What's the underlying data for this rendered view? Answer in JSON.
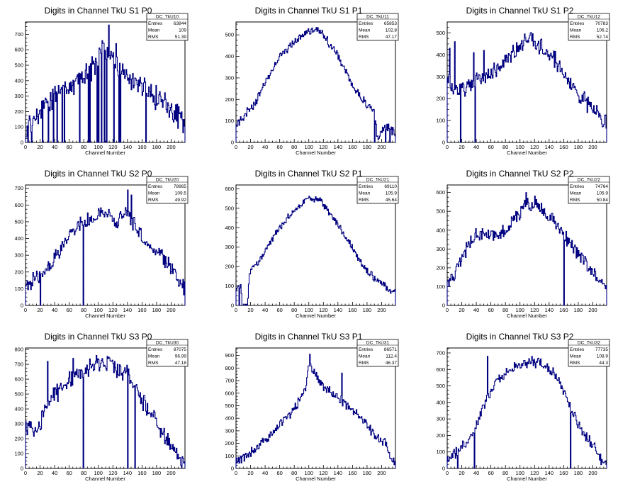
{
  "chart_data": [
    {
      "type": "histogram",
      "title": "Digits in Channel TkU S1 P0",
      "xlabel": "Channel Number",
      "xlim": [
        0,
        219
      ],
      "ylim": [
        0,
        780
      ],
      "xticks": [
        0,
        20,
        40,
        60,
        80,
        100,
        120,
        140,
        160,
        180,
        200
      ],
      "yticks": [
        0,
        100,
        200,
        300,
        400,
        500,
        600,
        700
      ],
      "stats": {
        "name": "DC_TkU10",
        "rows": [
          {
            "label": "Entries",
            "value": "63844"
          },
          {
            "label": "Mean",
            "value": "109"
          },
          {
            "label": "RMS",
            "value": "51.39"
          }
        ]
      },
      "profile": [
        [
          0,
          30
        ],
        [
          5,
          120
        ],
        [
          15,
          180
        ],
        [
          25,
          230
        ],
        [
          40,
          300
        ],
        [
          55,
          340
        ],
        [
          70,
          400
        ],
        [
          85,
          440
        ],
        [
          95,
          500
        ],
        [
          105,
          600
        ],
        [
          115,
          570
        ],
        [
          125,
          500
        ],
        [
          135,
          470
        ],
        [
          145,
          400
        ],
        [
          160,
          360
        ],
        [
          175,
          300
        ],
        [
          190,
          260
        ],
        [
          205,
          190
        ],
        [
          219,
          120
        ]
      ],
      "spikes": [
        [
          14,
          760
        ],
        [
          114,
          760
        ],
        [
          117,
          590
        ],
        [
          124,
          640
        ]
      ],
      "dips": [
        [
          3,
          0
        ],
        [
          8,
          0
        ],
        [
          14,
          150
        ],
        [
          23,
          0
        ],
        [
          31,
          0
        ],
        [
          38,
          0
        ],
        [
          43,
          0
        ],
        [
          50,
          0
        ],
        [
          53,
          0
        ],
        [
          74,
          0
        ],
        [
          86,
          0
        ],
        [
          88,
          0
        ],
        [
          98,
          0
        ],
        [
          100,
          0
        ],
        [
          104,
          0
        ],
        [
          108,
          0
        ],
        [
          111,
          0
        ],
        [
          121,
          0
        ],
        [
          128,
          0
        ],
        [
          130,
          0
        ],
        [
          165,
          0
        ]
      ],
      "noise": 90,
      "seed": 11
    },
    {
      "type": "histogram",
      "title": "Digits in Channel TkU S1 P1",
      "xlabel": "Channel Number",
      "xlim": [
        0,
        219
      ],
      "ylim": [
        0,
        560
      ],
      "xticks": [
        0,
        20,
        40,
        60,
        80,
        100,
        120,
        140,
        160,
        180,
        200
      ],
      "yticks": [
        0,
        100,
        200,
        300,
        400,
        500
      ],
      "stats": {
        "name": "DC_TkU11",
        "rows": [
          {
            "label": "Entries",
            "value": "65853"
          },
          {
            "label": "Mean",
            "value": "102.8"
          },
          {
            "label": "RMS",
            "value": "47.17"
          }
        ]
      },
      "profile": [
        [
          0,
          80
        ],
        [
          10,
          120
        ],
        [
          25,
          170
        ],
        [
          40,
          280
        ],
        [
          60,
          400
        ],
        [
          80,
          470
        ],
        [
          100,
          510
        ],
        [
          110,
          530
        ],
        [
          120,
          500
        ],
        [
          135,
          430
        ],
        [
          150,
          340
        ],
        [
          165,
          240
        ],
        [
          180,
          170
        ],
        [
          190,
          150
        ],
        [
          195,
          0
        ],
        [
          200,
          60
        ],
        [
          210,
          70
        ],
        [
          219,
          40
        ]
      ],
      "spikes": [],
      "dips": [
        [
          190,
          0
        ],
        [
          205,
          0
        ],
        [
          211,
          0
        ]
      ],
      "noise": 25,
      "seed": 12
    },
    {
      "type": "histogram",
      "title": "Digits in Channel TkU S1 P2",
      "xlabel": "Channel Number",
      "xlim": [
        0,
        219
      ],
      "ylim": [
        0,
        550
      ],
      "xticks": [
        0,
        20,
        40,
        60,
        80,
        100,
        120,
        140,
        160,
        180,
        200
      ],
      "yticks": [
        0,
        100,
        200,
        300,
        400,
        500
      ],
      "stats": {
        "name": "DC_TkU12",
        "rows": [
          {
            "label": "Entries",
            "value": "70783"
          },
          {
            "label": "Mean",
            "value": "106.2"
          },
          {
            "label": "RMS",
            "value": "52.74"
          }
        ]
      },
      "profile": [
        [
          0,
          300
        ],
        [
          5,
          250
        ],
        [
          15,
          240
        ],
        [
          25,
          250
        ],
        [
          40,
          290
        ],
        [
          55,
          310
        ],
        [
          70,
          340
        ],
        [
          85,
          390
        ],
        [
          100,
          440
        ],
        [
          110,
          470
        ],
        [
          120,
          460
        ],
        [
          135,
          420
        ],
        [
          150,
          370
        ],
        [
          165,
          290
        ],
        [
          180,
          220
        ],
        [
          195,
          170
        ],
        [
          205,
          150
        ],
        [
          212,
          100
        ]
      ],
      "spikes": [
        [
          3,
          430
        ],
        [
          10,
          460
        ],
        [
          36,
          410
        ],
        [
          50,
          420
        ]
      ],
      "dips": [
        [
          18,
          0
        ],
        [
          38,
          0
        ]
      ],
      "noise": 45,
      "seed": 13
    },
    {
      "type": "histogram",
      "title": "Digits in Channel TkU S2 P0",
      "xlabel": "Channel Number",
      "xlim": [
        0,
        219
      ],
      "ylim": [
        0,
        720
      ],
      "xticks": [
        0,
        20,
        40,
        60,
        80,
        100,
        120,
        140,
        160,
        180,
        200
      ],
      "yticks": [
        0,
        100,
        200,
        300,
        400,
        500,
        600,
        700
      ],
      "stats": {
        "name": "DC_TkU20",
        "rows": [
          {
            "label": "Entries",
            "value": "78965"
          },
          {
            "label": "Mean",
            "value": "109.5"
          },
          {
            "label": "RMS",
            "value": "49.92"
          }
        ]
      },
      "profile": [
        [
          0,
          100
        ],
        [
          10,
          150
        ],
        [
          20,
          180
        ],
        [
          35,
          250
        ],
        [
          50,
          350
        ],
        [
          65,
          460
        ],
        [
          80,
          500
        ],
        [
          100,
          530
        ],
        [
          115,
          540
        ],
        [
          125,
          500
        ],
        [
          140,
          560
        ],
        [
          155,
          440
        ],
        [
          170,
          340
        ],
        [
          190,
          280
        ],
        [
          205,
          200
        ],
        [
          212,
          150
        ],
        [
          219,
          100
        ]
      ],
      "spikes": [
        [
          140,
          690
        ],
        [
          145,
          660
        ]
      ],
      "dips": [
        [
          20,
          0
        ],
        [
          79,
          0
        ]
      ],
      "noise": 55,
      "seed": 21
    },
    {
      "type": "histogram",
      "title": "Digits in Channel TkU S2 P1",
      "xlabel": "Channel Number",
      "xlim": [
        0,
        219
      ],
      "ylim": [
        0,
        620
      ],
      "xticks": [
        0,
        20,
        40,
        60,
        80,
        100,
        120,
        140,
        160,
        180,
        200
      ],
      "yticks": [
        0,
        100,
        200,
        300,
        400,
        500,
        600
      ],
      "stats": {
        "name": "DC_TkU21",
        "rows": [
          {
            "label": "Entries",
            "value": "69110"
          },
          {
            "label": "Mean",
            "value": "105.9"
          },
          {
            "label": "RMS",
            "value": "45.64"
          }
        ]
      },
      "profile": [
        [
          0,
          70
        ],
        [
          6,
          110
        ],
        [
          10,
          0
        ],
        [
          16,
          0
        ],
        [
          18,
          170
        ],
        [
          30,
          220
        ],
        [
          45,
          310
        ],
        [
          60,
          400
        ],
        [
          80,
          490
        ],
        [
          100,
          560
        ],
        [
          115,
          540
        ],
        [
          130,
          470
        ],
        [
          150,
          360
        ],
        [
          170,
          230
        ],
        [
          190,
          140
        ],
        [
          205,
          100
        ],
        [
          212,
          70
        ]
      ],
      "spikes": [],
      "dips": [
        [
          4,
          0
        ],
        [
          8,
          0
        ]
      ],
      "noise": 22,
      "seed": 22
    },
    {
      "type": "histogram",
      "title": "Digits in Channel TkU S2 P2",
      "xlabel": "Channel Number",
      "xlim": [
        0,
        219
      ],
      "ylim": [
        0,
        640
      ],
      "xticks": [
        0,
        20,
        40,
        60,
        80,
        100,
        120,
        140,
        160,
        180,
        200
      ],
      "yticks": [
        0,
        100,
        200,
        300,
        400,
        500,
        600
      ],
      "stats": {
        "name": "DC_TkU22",
        "rows": [
          {
            "label": "Entries",
            "value": "74764"
          },
          {
            "label": "Mean",
            "value": "105.9"
          },
          {
            "label": "RMS",
            "value": "50.84"
          }
        ]
      },
      "profile": [
        [
          0,
          120
        ],
        [
          10,
          160
        ],
        [
          20,
          250
        ],
        [
          30,
          330
        ],
        [
          45,
          390
        ],
        [
          60,
          380
        ],
        [
          75,
          380
        ],
        [
          90,
          440
        ],
        [
          105,
          520
        ],
        [
          120,
          540
        ],
        [
          130,
          510
        ],
        [
          145,
          460
        ],
        [
          160,
          380
        ],
        [
          175,
          300
        ],
        [
          190,
          220
        ],
        [
          205,
          150
        ],
        [
          212,
          100
        ]
      ],
      "spikes": [
        [
          108,
          600
        ]
      ],
      "dips": [
        [
          160,
          0
        ]
      ],
      "noise": 45,
      "seed": 23
    },
    {
      "type": "histogram",
      "title": "Digits in Channel TkU S3 P0",
      "xlabel": "Channel Number",
      "xlim": [
        0,
        219
      ],
      "ylim": [
        0,
        810
      ],
      "xticks": [
        0,
        20,
        40,
        60,
        80,
        100,
        120,
        140,
        160,
        180,
        200
      ],
      "yticks": [
        0,
        100,
        200,
        300,
        400,
        500,
        600,
        700,
        800
      ],
      "stats": {
        "name": "DC_TkU30",
        "rows": [
          {
            "label": "Entries",
            "value": "87075"
          },
          {
            "label": "Mean",
            "value": "96.99"
          },
          {
            "label": "RMS",
            "value": "47.18"
          }
        ]
      },
      "profile": [
        [
          0,
          280
        ],
        [
          10,
          250
        ],
        [
          20,
          300
        ],
        [
          30,
          460
        ],
        [
          45,
          520
        ],
        [
          60,
          600
        ],
        [
          75,
          640
        ],
        [
          90,
          690
        ],
        [
          105,
          700
        ],
        [
          120,
          690
        ],
        [
          140,
          630
        ],
        [
          155,
          500
        ],
        [
          170,
          380
        ],
        [
          185,
          280
        ],
        [
          200,
          150
        ],
        [
          212,
          80
        ],
        [
          219,
          40
        ]
      ],
      "spikes": [
        [
          30,
          720
        ],
        [
          65,
          740
        ],
        [
          97,
          760
        ]
      ],
      "dips": [
        [
          79,
          0
        ],
        [
          140,
          0
        ],
        [
          150,
          0
        ]
      ],
      "noise": 70,
      "seed": 31
    },
    {
      "type": "histogram",
      "title": "Digits in Channel TkU S3 P1",
      "xlabel": "Channel Number",
      "xlim": [
        0,
        219
      ],
      "ylim": [
        0,
        960
      ],
      "xticks": [
        0,
        20,
        40,
        60,
        80,
        100,
        120,
        140,
        160,
        180,
        200
      ],
      "yticks": [
        0,
        100,
        200,
        300,
        400,
        500,
        600,
        700,
        800,
        900
      ],
      "stats": {
        "name": "DC_TkU31",
        "rows": [
          {
            "label": "Entries",
            "value": "86571"
          },
          {
            "label": "Mean",
            "value": "112.4"
          },
          {
            "label": "RMS",
            "value": "46.37"
          }
        ]
      },
      "profile": [
        [
          0,
          60
        ],
        [
          15,
          100
        ],
        [
          30,
          170
        ],
        [
          45,
          250
        ],
        [
          60,
          350
        ],
        [
          75,
          440
        ],
        [
          85,
          520
        ],
        [
          95,
          640
        ],
        [
          100,
          820
        ],
        [
          108,
          760
        ],
        [
          120,
          650
        ],
        [
          135,
          590
        ],
        [
          150,
          510
        ],
        [
          165,
          460
        ],
        [
          180,
          340
        ],
        [
          195,
          240
        ],
        [
          205,
          200
        ],
        [
          212,
          100
        ],
        [
          219,
          60
        ]
      ],
      "spikes": [
        [
          101,
          910
        ],
        [
          145,
          760
        ]
      ],
      "dips": [],
      "noise": 45,
      "seed": 32
    },
    {
      "type": "histogram",
      "title": "Digits in Channel TkU S3 P2",
      "xlabel": "Channel Number",
      "xlim": [
        0,
        219
      ],
      "ylim": [
        0,
        730
      ],
      "xticks": [
        0,
        20,
        40,
        60,
        80,
        100,
        120,
        140,
        160,
        180,
        200
      ],
      "yticks": [
        0,
        100,
        200,
        300,
        400,
        500,
        600,
        700
      ],
      "stats": {
        "name": "DC_TkU32",
        "rows": [
          {
            "label": "Entries",
            "value": "77735"
          },
          {
            "label": "Mean",
            "value": "108.9"
          },
          {
            "label": "RMS",
            "value": "44.3"
          }
        ]
      },
      "profile": [
        [
          0,
          50
        ],
        [
          10,
          90
        ],
        [
          20,
          130
        ],
        [
          35,
          200
        ],
        [
          45,
          320
        ],
        [
          55,
          430
        ],
        [
          70,
          530
        ],
        [
          85,
          600
        ],
        [
          100,
          630
        ],
        [
          115,
          650
        ],
        [
          130,
          640
        ],
        [
          150,
          560
        ],
        [
          165,
          420
        ],
        [
          180,
          270
        ],
        [
          195,
          170
        ],
        [
          205,
          120
        ],
        [
          212,
          40
        ]
      ],
      "spikes": [
        [
          55,
          680
        ]
      ],
      "dips": [
        [
          14,
          0
        ],
        [
          37,
          0
        ],
        [
          169,
          0
        ]
      ],
      "noise": 40,
      "seed": 33
    }
  ]
}
